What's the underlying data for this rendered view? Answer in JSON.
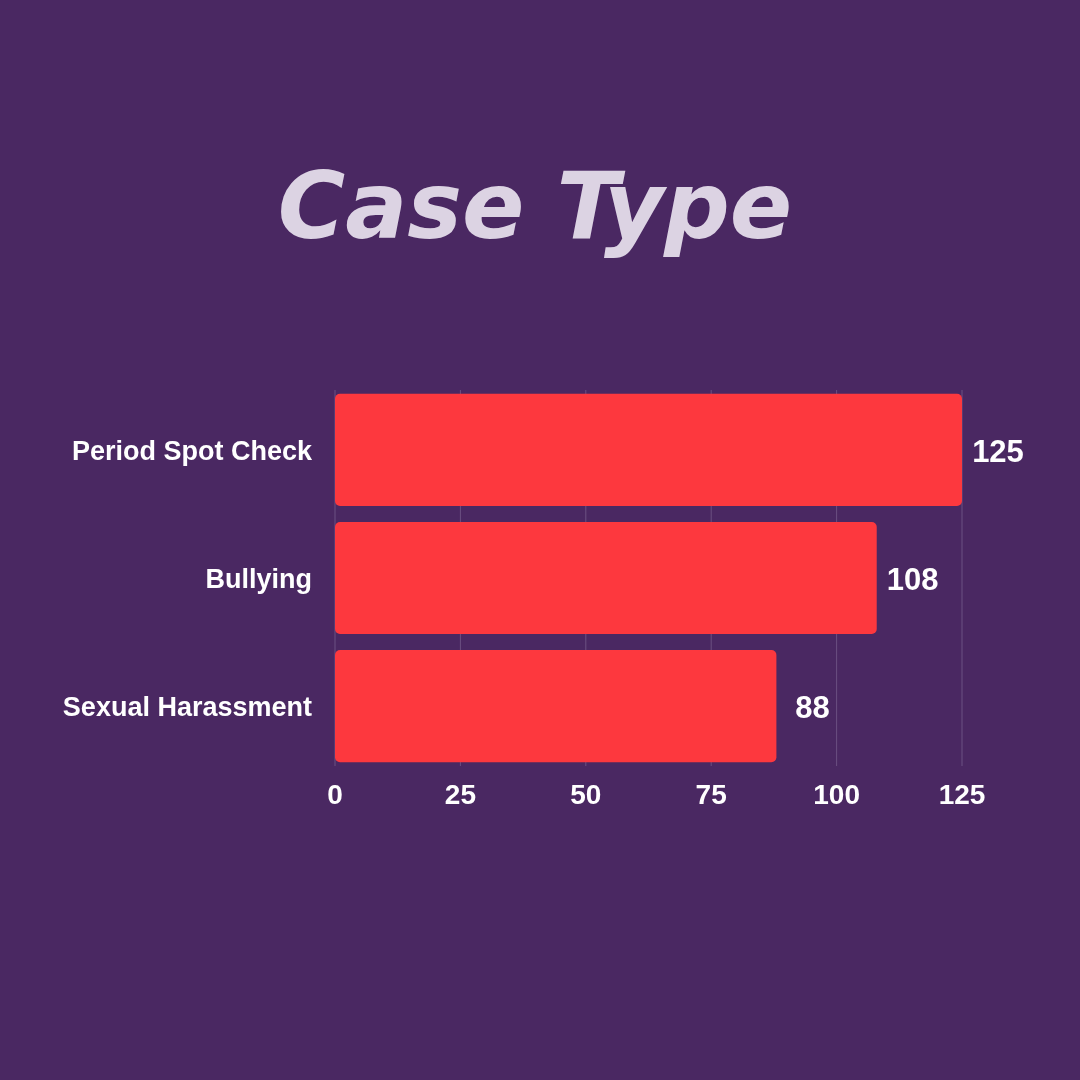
{
  "chart_data": {
    "type": "bar",
    "orientation": "horizontal",
    "title": "Case Type",
    "categories": [
      "Period Spot Check",
      "Bullying",
      "Sexual Harassment"
    ],
    "values": [
      125,
      108,
      88
    ],
    "color": "#fd383e",
    "xlim": [
      0,
      125
    ],
    "xticks": [
      0,
      25,
      50,
      75,
      100,
      125
    ],
    "grid": "x",
    "data_labels": true
  }
}
